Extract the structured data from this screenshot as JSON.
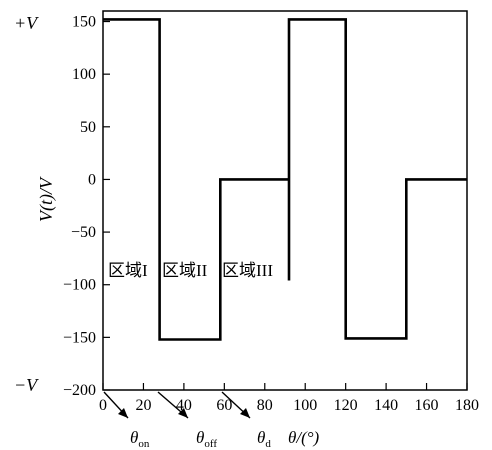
{
  "chart_data": {
    "type": "line",
    "title": "",
    "xlabel": "θ/(°)",
    "ylabel": "V(t)/V",
    "xlim": [
      0,
      180
    ],
    "ylim": [
      -200,
      160
    ],
    "x_ticks": [
      0,
      20,
      40,
      60,
      80,
      100,
      120,
      140,
      160,
      180
    ],
    "y_ticks": [
      150,
      100,
      50,
      0,
      -50,
      -100,
      -150,
      -200
    ],
    "x_tick_labels": [
      "0",
      "20",
      "40",
      "60",
      "80",
      "100",
      "120",
      "140",
      "160",
      "180"
    ],
    "y_tick_labels": [
      "150",
      "100",
      "50",
      "0",
      "−50",
      "−100",
      "−150",
      "−200"
    ],
    "grid": false,
    "series": [
      {
        "x": [
          0,
          28,
          28,
          58,
          58,
          92,
          92,
          92,
          120,
          120,
          150,
          150,
          180
        ],
        "y": [
          152,
          152,
          -152,
          -152,
          0,
          0,
          -96,
          152,
          152,
          -151,
          -151,
          0,
          0
        ]
      }
    ],
    "annotations": {
      "plus_v": "+V",
      "minus_v": "−V",
      "zones": [
        "区域I",
        "区域II",
        "区域III"
      ],
      "theta_on": {
        "symbol": "θ",
        "sub": "on"
      },
      "theta_off": {
        "symbol": "θ",
        "sub": "off"
      },
      "theta_d": {
        "symbol": "θ",
        "sub": "d"
      }
    }
  }
}
